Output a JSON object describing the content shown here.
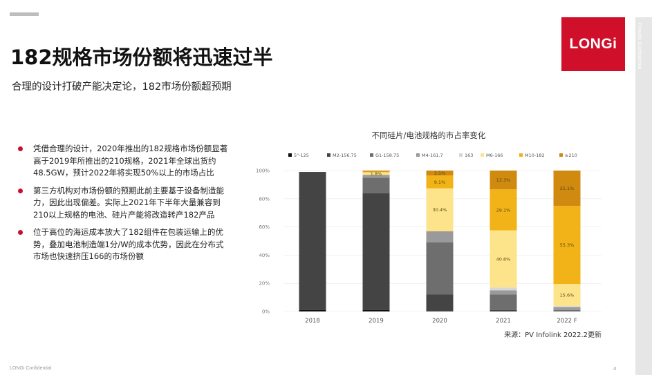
{
  "slide": {
    "title": "182规格市场份额将迅速过半",
    "subtitle": "合理的设计打破产能决定论，182市场份额超预期",
    "logo_text": "LONGi",
    "side_label": "Proudly Confidential",
    "footer": "LONGi Confidential",
    "page_number": "4",
    "bullets": [
      "凭借合理的设计，2020年推出的182规格市场份额显著高于2019年所推出的210规格，2021年全球出货约48.5GW，预计2022年将实现50%以上的市场占比",
      "第三方机构对市场份额的预期此前主要基于设备制造能力，因此出现偏差。实际上2021年下半年大量兼容到210以上规格的电池、硅片产能将改造转产182产品",
      "位于高位的海运成本放大了182组件在包装运输上的优势，叠加电池制造端1分/W的成本优势，因此在分布式市场也快速挤压166的市场份额"
    ]
  },
  "colors": {
    "accent": "#c8102e",
    "logo_bg": "#d0102a"
  },
  "chart_data": {
    "type": "bar",
    "stacked": true,
    "title": "不同硅片/电池规格的市占率变化",
    "source": "来源：PV Infolink 2022.2更新",
    "categories": [
      "2018",
      "2019",
      "2020",
      "2021",
      "2022 F"
    ],
    "ylim": [
      0,
      100
    ],
    "yticks": [
      "0%",
      "20%",
      "40%",
      "60%",
      "80%",
      "100%"
    ],
    "legend_position": "top",
    "series": [
      {
        "name": "5\"-125",
        "color": "#111111",
        "values": [
          1,
          1,
          0,
          0,
          0
        ]
      },
      {
        "name": "M2-156.75",
        "color": "#444444",
        "values": [
          98,
          83,
          12,
          1,
          0
        ]
      },
      {
        "name": "G1-158.75",
        "color": "#6e6e6e",
        "values": [
          0,
          11,
          37,
          11,
          1
        ]
      },
      {
        "name": "M4-161.7",
        "color": "#9a9a9a",
        "values": [
          0,
          2,
          8,
          3,
          2
        ]
      },
      {
        "name": "163",
        "color": "#d6d6d6",
        "values": [
          0,
          0,
          0,
          2,
          1
        ]
      },
      {
        "name": "M6-166",
        "color": "#fde38a",
        "values": [
          0,
          1.8,
          30.4,
          40.6,
          15.6
        ]
      },
      {
        "name": "M10-182",
        "color": "#f2b318",
        "values": [
          0,
          0.4,
          9.1,
          29.1,
          55.3
        ]
      },
      {
        "name": "≥210",
        "color": "#d08a10",
        "values": [
          0,
          0.8,
          3.5,
          13.3,
          25.1
        ]
      }
    ],
    "data_labels": [
      {
        "category": "2019",
        "series": "M6-166",
        "text": "1.8%"
      },
      {
        "category": "2020",
        "series": "M6-166",
        "text": "30.4%"
      },
      {
        "category": "2020",
        "series": "M10-182",
        "text": "9.1%"
      },
      {
        "category": "2020",
        "series": "≥210",
        "text": "3.5%"
      },
      {
        "category": "2021",
        "series": "M6-166",
        "text": "40.6%"
      },
      {
        "category": "2021",
        "series": "M10-182",
        "text": "29.1%"
      },
      {
        "category": "2021",
        "series": "≥210",
        "text": "13.3%"
      },
      {
        "category": "2022 F",
        "series": "M6-166",
        "text": "15.6%"
      },
      {
        "category": "2022 F",
        "series": "M10-182",
        "text": "55.3%"
      },
      {
        "category": "2022 F",
        "series": "≥210",
        "text": "25.1%"
      }
    ]
  }
}
